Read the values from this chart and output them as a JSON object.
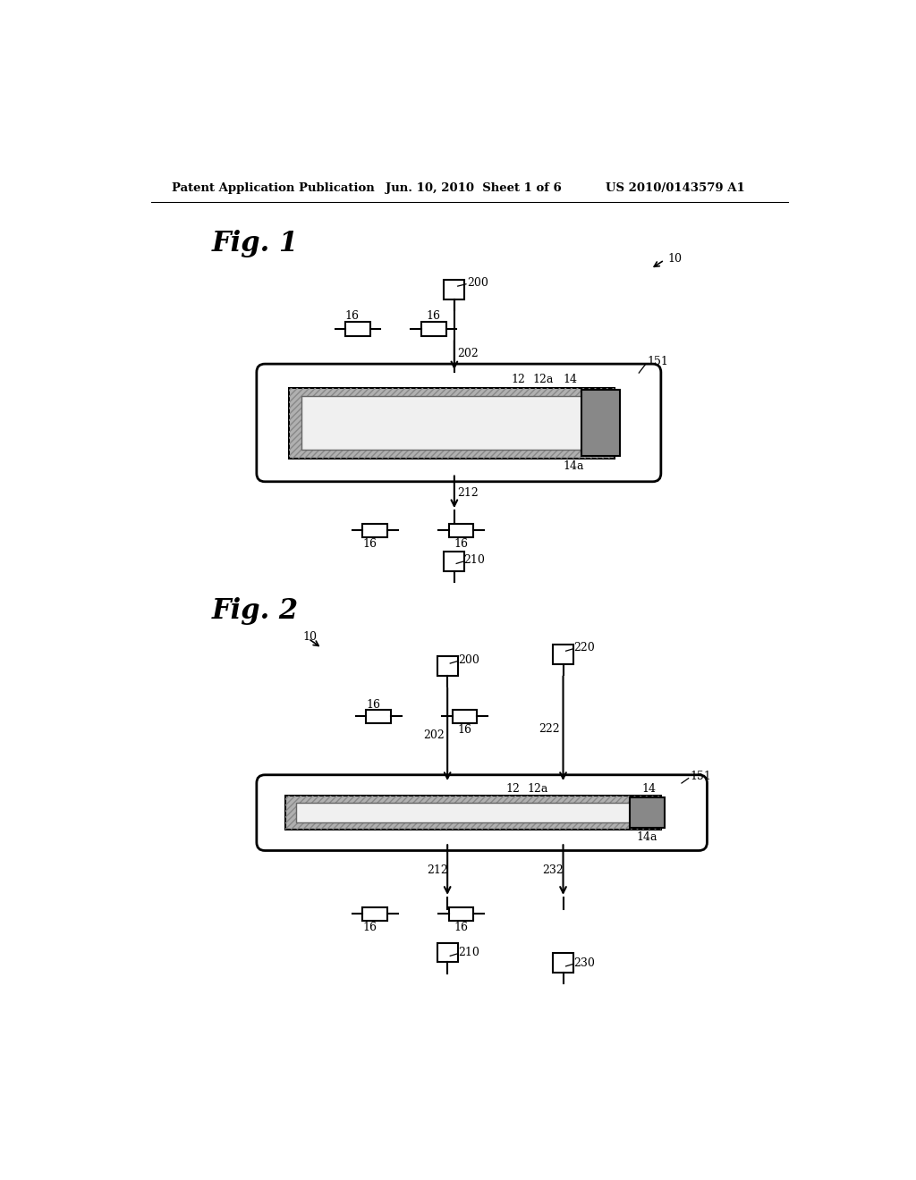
{
  "bg_color": "#ffffff",
  "header_left": "Patent Application Publication",
  "header_mid": "Jun. 10, 2010  Sheet 1 of 6",
  "header_right": "US 2010/0143579 A1",
  "fig1_label": "Fig. 1",
  "fig2_label": "Fig. 2"
}
